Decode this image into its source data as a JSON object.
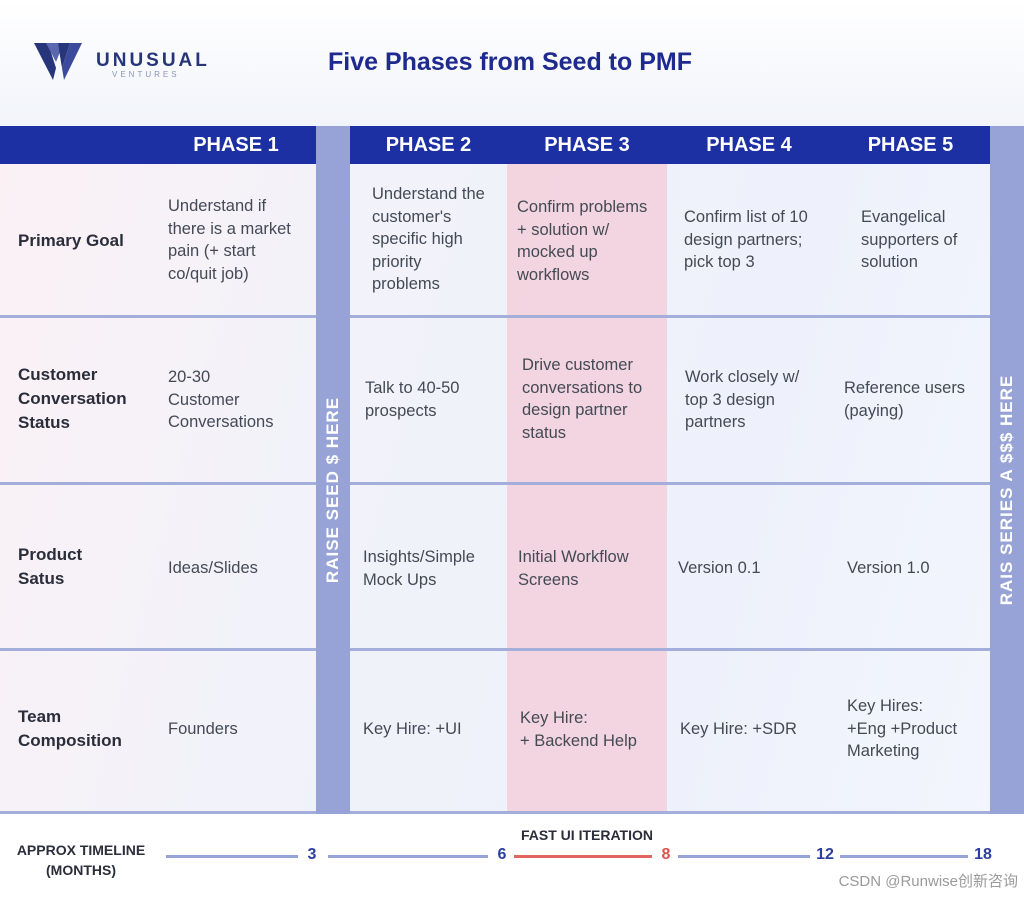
{
  "header": {
    "logo_name": "UNUSUAL",
    "logo_sub": "VENTURES",
    "title": "Five Phases from Seed to PMF"
  },
  "phases": [
    "PHASE 1",
    "PHASE 2",
    "PHASE 3",
    "PHASE 4",
    "PHASE 5"
  ],
  "raise_markers": {
    "seed": "RAISE SEED $ HERE",
    "series_a": "RAIS SERIES A $$$ HERE"
  },
  "rows": [
    {
      "label": "Primary Goal",
      "cells": [
        "Understand if\nthere is a market\npain (+ start\nco/quit job)",
        "Understand the\ncustomer's\nspecific high\npriority\nproblems",
        "Confirm problems\n+ solution w/\nmocked up\nworkflows",
        "Confirm list of 10\ndesign partners;\npick top 3",
        "Evangelical\nsupporters of\nsolution"
      ]
    },
    {
      "label": "Customer\nConversation\nStatus",
      "cells": [
        "20-30\nCustomer\nConversations",
        "Talk to 40-50\nprospects",
        "Drive customer\nconversations to\ndesign partner\nstatus",
        "Work closely w/\ntop 3 design\npartners",
        "Reference users\n(paying)"
      ]
    },
    {
      "label": "Product\n Satus",
      "cells": [
        "Ideas/Slides",
        "Insights/Simple\nMock Ups",
        "Initial Workflow\nScreens",
        "Version 0.1",
        "Version 1.0"
      ]
    },
    {
      "label": "Team\nComposition",
      "cells": [
        "Founders",
        "Key Hire: +UI",
        "Key Hire:\n+ Backend Help",
        "Key Hire: +SDR",
        "Key Hires:\n+Eng +Product\nMarketing"
      ]
    }
  ],
  "timeline": {
    "label": "APPROX TIMELINE\n(MONTHS)",
    "fast_label": "FAST UI ITERATION",
    "marks": [
      "3",
      "6",
      "8",
      "12",
      "18"
    ]
  },
  "watermark": "CSDN @Runwise创新咨询",
  "colors": {
    "phase_header": "#1c2fa3",
    "raise_bar": "#97a3d6",
    "phase3_highlight": "#f4c4ce",
    "title": "#1e2a8e",
    "timeline_accent": "#e0665f"
  }
}
